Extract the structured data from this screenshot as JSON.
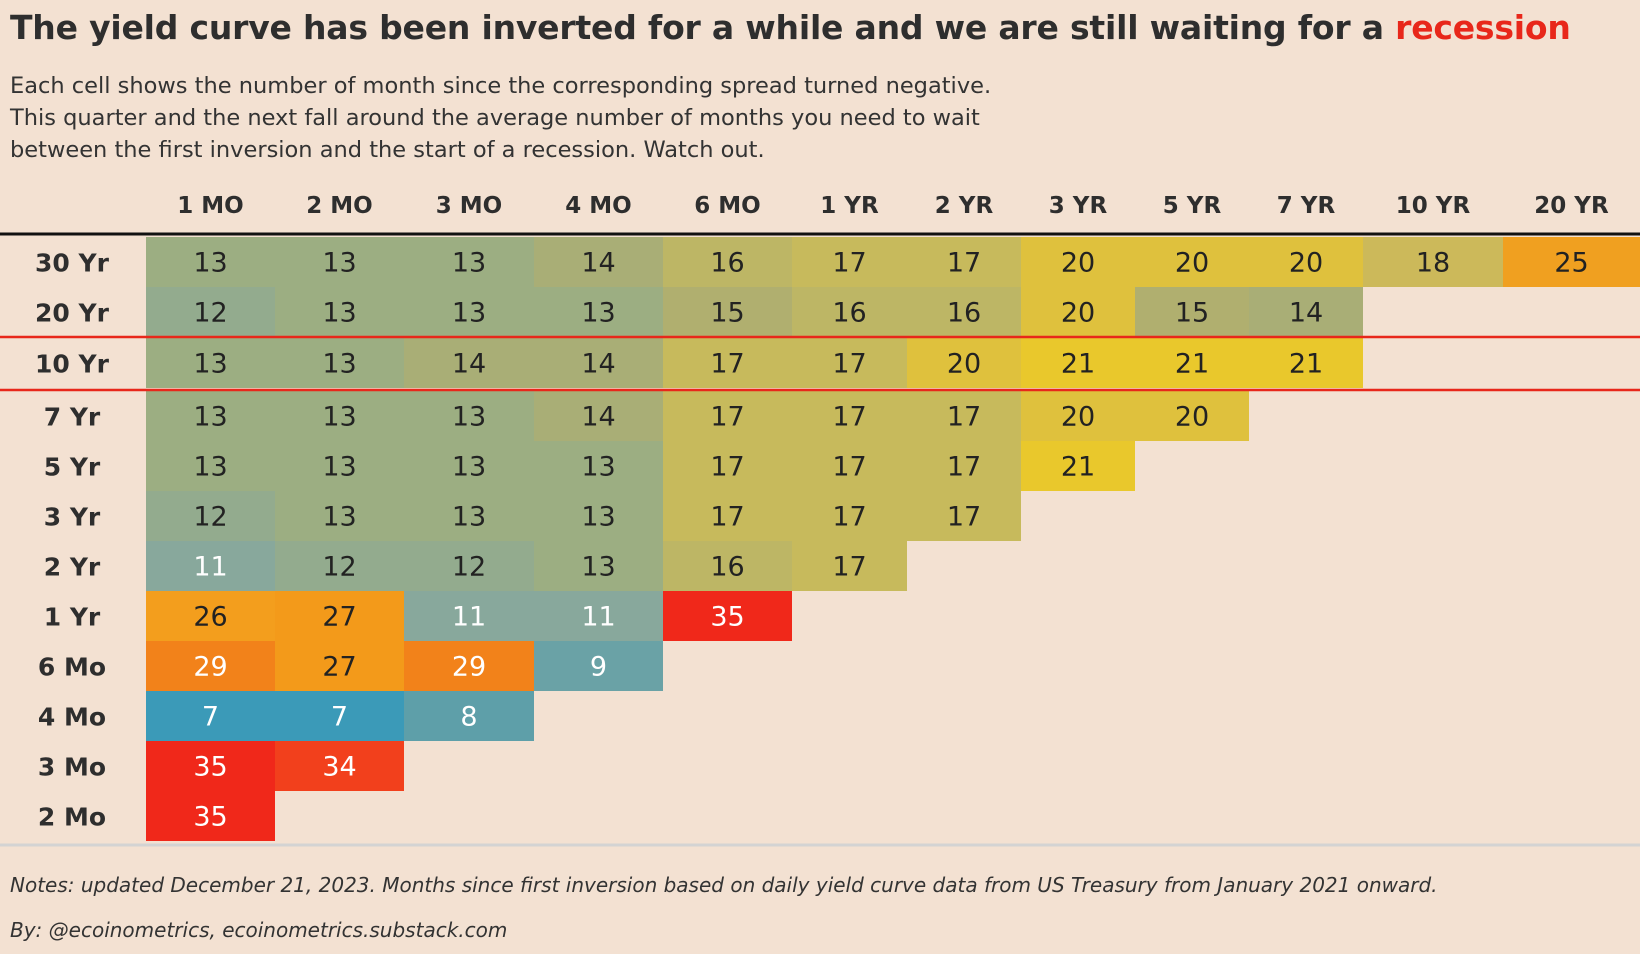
{
  "header": {
    "title_main": "The yield curve has been inverted for a while and we are still waiting for a ",
    "title_highlight": "recession",
    "subtitle_lines": [
      "Each cell shows the number of month since the corresponding spread turned negative.",
      "This quarter and the next fall around the average number of months you need to wait",
      "between the first inversion and the start of a recession. Watch out."
    ]
  },
  "footer": {
    "notes": "Notes: updated December 21, 2023. Months since first inversion based on daily yield curve data from US Treasury from January 2021 onward.",
    "byline": "By: @ecoinometrics, ecoinometrics.substack.com"
  },
  "colors": {
    "highlight": "#e8271a",
    "background": "#f3e1d2",
    "bin_colors": {
      "7": "#3b9ab8",
      "8": "#5e9fa9",
      "9": "#6aa2a6",
      "11": "#88a89c",
      "12": "#93ab8e",
      "13": "#9cae82",
      "14": "#a9ae76",
      "15": "#b0af6f",
      "16": "#bdb665",
      "17": "#c7ba5c",
      "18": "#ccb95a",
      "20": "#dfc13d",
      "21": "#e9c82c",
      "25": "#f0a020",
      "26": "#f39e1d",
      "27": "#f39a1a",
      "29": "#f2821a",
      "34": "#f2401c",
      "35": "#f0281a"
    }
  },
  "chart_data": {
    "type": "heatmap",
    "title": "The yield curve has been inverted for a while and we are still waiting for a recession",
    "columns": [
      "1 MO",
      "2 MO",
      "3 MO",
      "4 MO",
      "6 MO",
      "1 YR",
      "2 YR",
      "3 YR",
      "5 YR",
      "7 YR",
      "10 YR",
      "20 YR"
    ],
    "rows": [
      "30 Yr",
      "20 Yr",
      "10 Yr",
      "7 Yr",
      "5 Yr",
      "3 Yr",
      "2 Yr",
      "1 Yr",
      "6 Mo",
      "4 Mo",
      "3 Mo",
      "2 Mo"
    ],
    "highlighted_row": "10 Yr",
    "values": [
      [
        13,
        13,
        13,
        14,
        16,
        17,
        17,
        20,
        20,
        20,
        18,
        25
      ],
      [
        12,
        13,
        13,
        13,
        15,
        16,
        16,
        20,
        15,
        14,
        null,
        null
      ],
      [
        13,
        13,
        14,
        14,
        17,
        17,
        20,
        21,
        21,
        21,
        null,
        null
      ],
      [
        13,
        13,
        13,
        14,
        17,
        17,
        17,
        20,
        20,
        null,
        null,
        null
      ],
      [
        13,
        13,
        13,
        13,
        17,
        17,
        17,
        21,
        null,
        null,
        null,
        null
      ],
      [
        12,
        13,
        13,
        13,
        17,
        17,
        17,
        null,
        null,
        null,
        null,
        null
      ],
      [
        11,
        12,
        12,
        13,
        16,
        17,
        null,
        null,
        null,
        null,
        null,
        null
      ],
      [
        26,
        27,
        11,
        11,
        35,
        null,
        null,
        null,
        null,
        null,
        null,
        null
      ],
      [
        29,
        27,
        29,
        9,
        null,
        null,
        null,
        null,
        null,
        null,
        null,
        null
      ],
      [
        7,
        7,
        8,
        null,
        null,
        null,
        null,
        null,
        null,
        null,
        null,
        null
      ],
      [
        35,
        34,
        null,
        null,
        null,
        null,
        null,
        null,
        null,
        null,
        null,
        null
      ],
      [
        35,
        null,
        null,
        null,
        null,
        null,
        null,
        null,
        null,
        null,
        null,
        null
      ]
    ],
    "white_text_values": [
      7,
      8,
      9,
      11,
      29,
      34,
      35
    ]
  }
}
